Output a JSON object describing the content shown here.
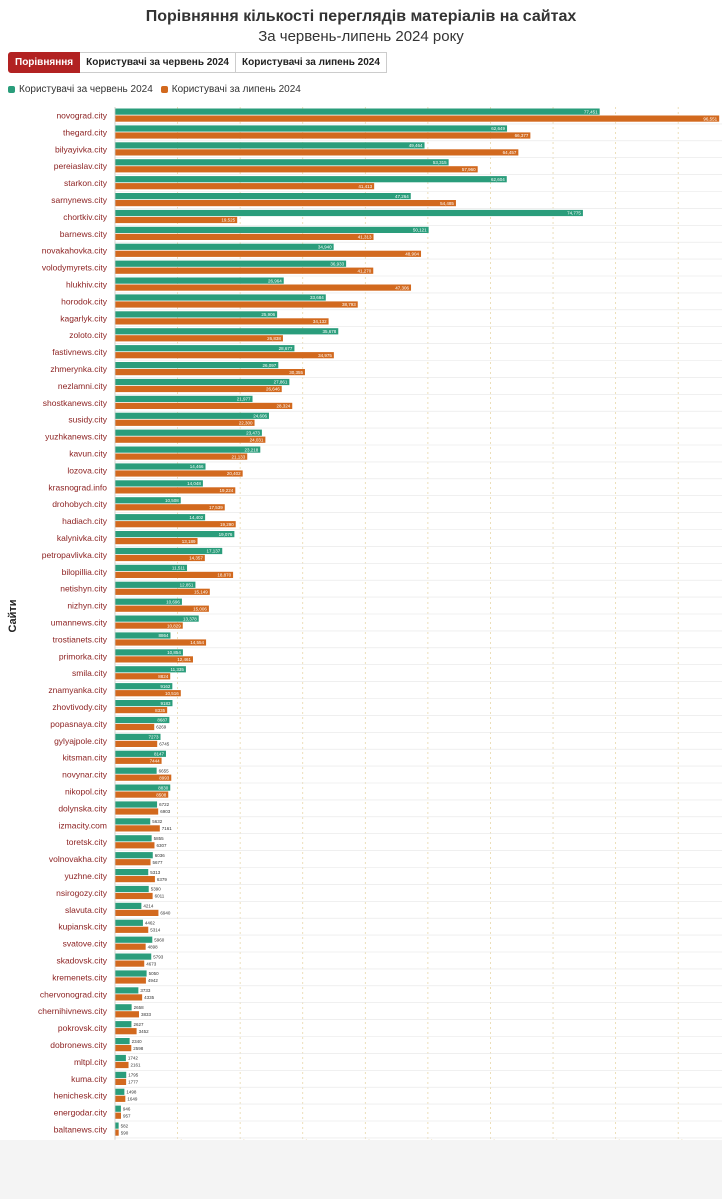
{
  "header": {
    "title": "Порівняння кількості переглядів матеріалів на сайтах",
    "subtitle": "За червень-липень 2024 року"
  },
  "tabs": [
    {
      "label": "Порівняння",
      "active": true
    },
    {
      "label": "Користувачі за червень 2024",
      "active": false
    },
    {
      "label": "Користувачі за липень 2024",
      "active": false
    }
  ],
  "colors": {
    "june": "#2a9d7b",
    "july": "#d2691e",
    "tab_active": "#b22222",
    "category_text": "#8b1f1f",
    "grid": "#e8d7a8"
  },
  "chart_data": {
    "type": "bar",
    "orientation": "horizontal",
    "title": "Порівняння кількості переглядів матеріалів на сайтах",
    "subtitle": "За червень-липень 2024 року",
    "ylabel": "Сайти",
    "xlabel": "",
    "grid": true,
    "legend_position": "top-left",
    "xlim": [
      0,
      97000
    ],
    "categories": [
      "novograd.city",
      "thegard.city",
      "bilyayivka.city",
      "pereiaslav.city",
      "starkon.city",
      "sarnynews.city",
      "chortkiv.city",
      "barnews.city",
      "novakahovka.city",
      "volodymyrets.city",
      "hlukhiv.city",
      "horodok.city",
      "kagarlyk.city",
      "zoloto.city",
      "fastivnews.city",
      "zhmerynka.city",
      "nezlamni.city",
      "shostkanews.city",
      "susidy.city",
      "yuzhkanews.city",
      "kavun.city",
      "lozova.city",
      "krasnograd.info",
      "drohobych.city",
      "hadiach.city",
      "kalynivka.city",
      "petropavlivka.city",
      "bilopillia.city",
      "netishyn.city",
      "nizhyn.city",
      "umannews.city",
      "trostianets.city",
      "primorka.city",
      "smila.city",
      "znamyanka.city",
      "zhovtivody.city",
      "popasnaya.city",
      "gylyajpole.city",
      "kitsman.city",
      "novynar.city",
      "nikopol.city",
      "dolynska.city",
      "izmacity.com",
      "toretsk.city",
      "volnovakha.city",
      "yuzhne.city",
      "nsirogozy.city",
      "slavuta.city",
      "kupiansk.city",
      "svatove.city",
      "skadovsk.city",
      "kremenets.city",
      "chervonograd.city",
      "chernihivnews.city",
      "pokrovsk.city",
      "dobronews.city",
      "mltpl.city",
      "kuma.city",
      "henichesk.city",
      "energodar.city",
      "baltanews.city"
    ],
    "series": [
      {
        "name": "Користувачі за червень 2024",
        "color": "#2a9d7b",
        "values": [
          77451,
          62649,
          49464,
          53315,
          62604,
          47264,
          74775,
          50121,
          34940,
          36933,
          26964,
          33684,
          25906,
          35678,
          28677,
          26097,
          27861,
          21977,
          24606,
          23473,
          23218,
          14466,
          14048,
          10508,
          14402,
          19076,
          17137,
          11511,
          12851,
          10696,
          13378,
          8864,
          10854,
          11335,
          9162,
          9183,
          8687,
          7273,
          8147,
          6655,
          8830,
          6722,
          5632,
          5855,
          6036,
          5313,
          5390,
          4214,
          4462,
          5960,
          5793,
          5050,
          3733,
          2658,
          2627,
          2340,
          1742,
          1795,
          1498,
          946,
          582
        ]
      },
      {
        "name": "Користувачі за липень 2024",
        "color": "#d2691e",
        "values": [
          96551,
          66377,
          64457,
          57960,
          41413,
          54485,
          19525,
          41313,
          48904,
          41270,
          47306,
          38793,
          34132,
          26838,
          34975,
          30355,
          26646,
          28324,
          22300,
          24031,
          21133,
          20402,
          19224,
          17539,
          19290,
          13189,
          14357,
          18870,
          15149,
          15006,
          10829,
          14554,
          12461,
          8824,
          10516,
          8335,
          6269,
          6745,
          7444,
          8993,
          8508,
          6903,
          7161,
          6307,
          5677,
          6379,
          6011,
          6940,
          5314,
          4898,
          4673,
          4942,
          4335,
          3833,
          3452,
          2598,
          2161,
          1777,
          1649,
          957,
          590
        ]
      }
    ]
  }
}
